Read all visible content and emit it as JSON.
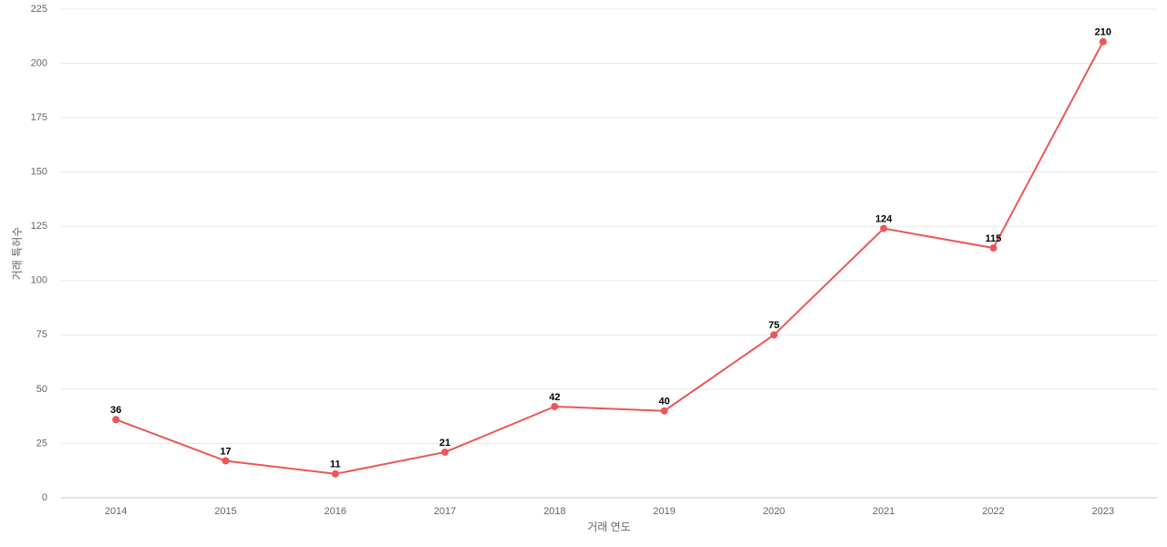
{
  "chart_data": {
    "type": "line",
    "x_label": "거래 연도",
    "y_label": "거래 특허수",
    "categories": [
      "2014",
      "2015",
      "2016",
      "2017",
      "2018",
      "2019",
      "2020",
      "2021",
      "2022",
      "2023"
    ],
    "series": [
      {
        "color": "#eb5757",
        "values": [
          36,
          17,
          11,
          21,
          42,
          40,
          75,
          124,
          115,
          210
        ]
      }
    ],
    "ylim": [
      0,
      225
    ],
    "yticks": [
      0,
      25,
      50,
      75,
      100,
      125,
      150,
      175,
      200,
      225
    ],
    "grid": true
  }
}
